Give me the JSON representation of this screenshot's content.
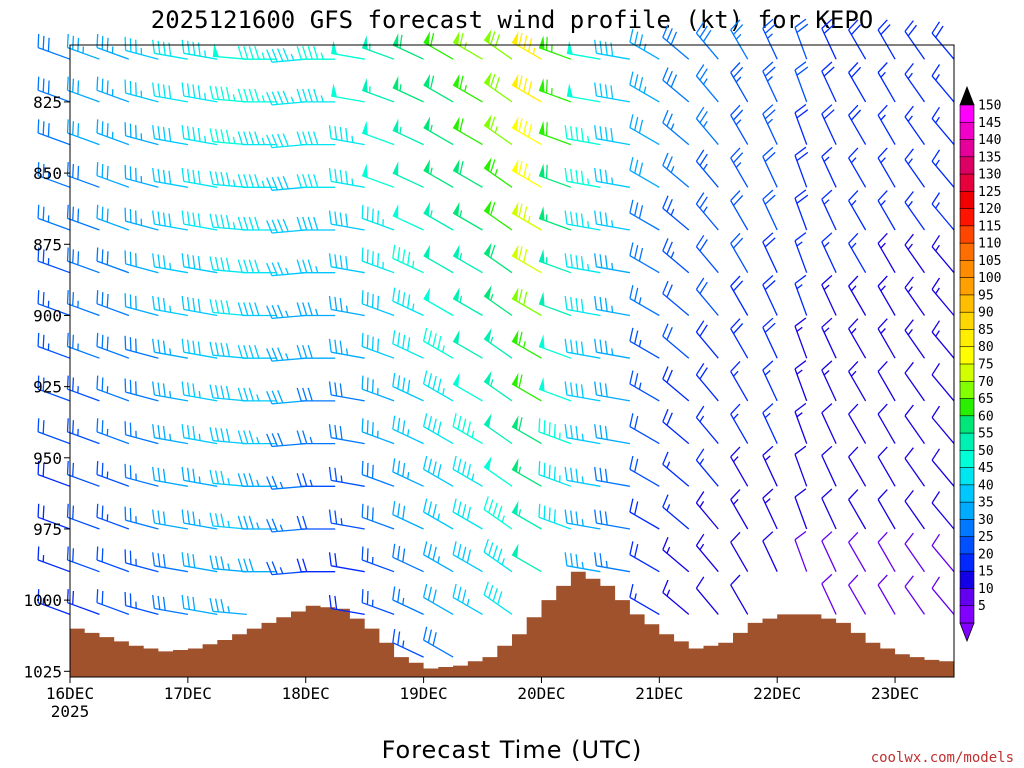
{
  "chart_data": {
    "type": "wind-barb profile",
    "title": "2025121600 GFS forecast wind profile (kt) for KEPO",
    "xlabel": "Forecast Time (UTC)",
    "ylabel": "",
    "credit": "coolwx.com/models",
    "x_ticks": [
      "16DEC",
      "17DEC",
      "18DEC",
      "19DEC",
      "20DEC",
      "21DEC",
      "22DEC",
      "23DEC"
    ],
    "x_year_label": "2025",
    "x_range_hours": [
      0,
      180
    ],
    "y_ticks": [
      "825",
      "850",
      "875",
      "900",
      "925",
      "950",
      "975",
      "1000",
      "1025"
    ],
    "y_range_hpa": [
      805,
      1027
    ],
    "levels_hpa": [
      810,
      825,
      840,
      855,
      870,
      885,
      900,
      915,
      930,
      945,
      960,
      975,
      990,
      1005,
      1020
    ],
    "colorbar": {
      "labels": [
        "150",
        "145",
        "140",
        "135",
        "130",
        "125",
        "120",
        "115",
        "110",
        "105",
        "100",
        "95",
        "90",
        "85",
        "80",
        "75",
        "70",
        "65",
        "60",
        "55",
        "50",
        "45",
        "40",
        "35",
        "30",
        "25",
        "20",
        "15",
        "10",
        "5"
      ],
      "colors": [
        "#ff00ff",
        "#f000c8",
        "#e6009a",
        "#dc0064",
        "#e6003c",
        "#f00000",
        "#ff1400",
        "#ff4600",
        "#ff6e00",
        "#ff8c00",
        "#ffa000",
        "#ffbe00",
        "#ffd700",
        "#ffee00",
        "#ffff00",
        "#d2ff00",
        "#82ff00",
        "#28f000",
        "#00e678",
        "#00f0b4",
        "#00ffd7",
        "#00e6f0",
        "#00c8ff",
        "#00aaff",
        "#0078ff",
        "#0050ff",
        "#0028ff",
        "#1400e6",
        "#6400f0",
        "#8200ff"
      ],
      "max_color": "#000000",
      "min_color": "#8200ff"
    },
    "surface_pressure_hpa": {
      "times_hours": [
        0,
        6,
        12,
        18,
        24,
        30,
        36,
        42,
        48,
        54,
        60,
        66,
        72,
        78,
        84,
        90,
        96,
        102,
        108,
        114,
        120,
        126,
        132,
        138,
        144,
        150,
        156,
        162,
        168,
        174,
        180
      ],
      "values": [
        1010,
        1013,
        1016,
        1018,
        1017,
        1014,
        1010,
        1006,
        1002,
        1003,
        1010,
        1020,
        1024,
        1023,
        1020,
        1012,
        1000,
        990,
        995,
        1005,
        1012,
        1017,
        1015,
        1008,
        1005,
        1005,
        1008,
        1015,
        1019,
        1021,
        1022
      ],
      "fill_color": "#a0522d"
    },
    "wind": {
      "times_hours": [
        0,
        6,
        12,
        18,
        24,
        30,
        36,
        42,
        48,
        54,
        60,
        66,
        72,
        78,
        84,
        90,
        96,
        102,
        108,
        114,
        120,
        126,
        132,
        138,
        144,
        150,
        156,
        162,
        168,
        174,
        180
      ],
      "speed_kt_low_level": [
        15,
        18,
        20,
        22,
        28,
        30,
        32,
        30,
        20,
        15,
        15,
        20,
        25,
        30,
        35,
        40,
        45,
        35,
        30,
        25,
        15,
        12,
        10,
        10,
        10,
        8,
        8,
        8,
        8,
        8,
        8
      ],
      "speed_kt_upper_level": [
        30,
        33,
        35,
        37,
        42,
        45,
        48,
        47,
        45,
        47,
        50,
        55,
        58,
        62,
        66,
        70,
        85,
        65,
        50,
        40,
        35,
        30,
        28,
        26,
        25,
        22,
        20,
        20,
        18,
        18,
        18
      ],
      "direction_deg": [
        290,
        290,
        290,
        285,
        280,
        280,
        275,
        270,
        265,
        270,
        280,
        290,
        295,
        300,
        300,
        305,
        300,
        290,
        280,
        280,
        300,
        310,
        320,
        330,
        335,
        340,
        335,
        330,
        330,
        325,
        320
      ]
    }
  }
}
